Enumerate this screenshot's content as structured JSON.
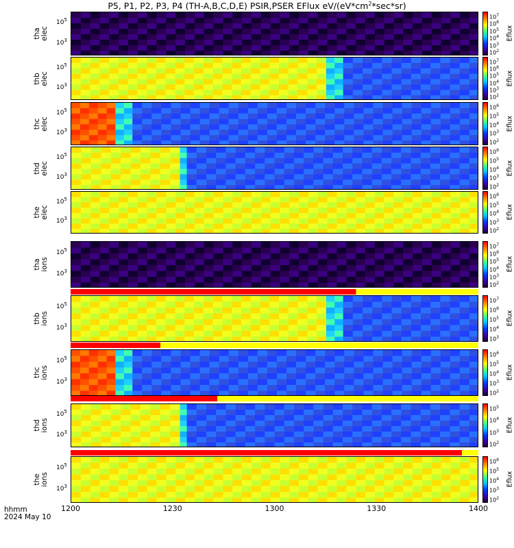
{
  "title": {
    "text": "P5, P1, P2, P3, P4 (TH-A,B,C,D,E) PSIR,PSER EFlux eV/(eV*cm",
    "sup": "2",
    "text2": "*sec*sr)"
  },
  "x_axis": {
    "label": "hhmm",
    "date": "2024 May 10",
    "ticks": [
      "1200",
      "1230",
      "1300",
      "1330",
      "1400"
    ]
  },
  "colorbar_label": "Eflux",
  "chart_data": {
    "type": "heatmap",
    "xrange": [
      "1200",
      "1400"
    ],
    "panels": [
      {
        "ylabel": [
          "tha",
          "elec"
        ],
        "yticks": [
          "10^5",
          "10^3"
        ],
        "cbar": [
          "10^7",
          "10^6",
          "10^5",
          "10^4",
          "10^3",
          "10^2"
        ],
        "segments": [
          {
            "to": "1400",
            "level": "very low"
          }
        ]
      },
      {
        "ylabel": [
          "thb",
          "elec"
        ],
        "yticks": [
          "10^5",
          "10^3"
        ],
        "cbar": [
          "10^7",
          "10^6",
          "10^5",
          "10^4",
          "10^3",
          "10^2"
        ],
        "segments": [
          {
            "to": "1315",
            "level": "high"
          },
          {
            "to": "1320",
            "level": "medium"
          },
          {
            "to": "1400",
            "level": "low"
          }
        ]
      },
      {
        "ylabel": [
          "thc",
          "elec"
        ],
        "yticks": [
          "10^5",
          "10^3"
        ],
        "cbar": [
          "10^6",
          "10^5",
          "10^4",
          "10^3",
          "10^2"
        ],
        "segments": [
          {
            "to": "1213",
            "level": "very high"
          },
          {
            "to": "1218",
            "level": "medium"
          },
          {
            "to": "1400",
            "level": "low"
          }
        ]
      },
      {
        "ylabel": [
          "thd",
          "elec"
        ],
        "yticks": [
          "10^5",
          "10^3"
        ],
        "cbar": [
          "10^6",
          "10^5",
          "10^4",
          "10^3",
          "10^2"
        ],
        "segments": [
          {
            "to": "1232",
            "level": "high"
          },
          {
            "to": "1234",
            "level": "medium"
          },
          {
            "to": "1400",
            "level": "low"
          }
        ]
      },
      {
        "ylabel": [
          "the",
          "elec"
        ],
        "yticks": [
          "10^5",
          "10^3"
        ],
        "cbar": [
          "10^6",
          "10^5",
          "10^4",
          "10^3",
          "10^2"
        ],
        "segments": [
          {
            "to": "1400",
            "level": "high"
          }
        ]
      },
      {
        "ylabel": [
          "tha",
          "ions"
        ],
        "yticks": [
          "10^5",
          "10^3"
        ],
        "cbar": [
          "10^7",
          "10^6",
          "10^5",
          "10^4",
          "10^3",
          "10^2"
        ],
        "segments": [
          {
            "to": "1400",
            "level": "very low"
          }
        ]
      },
      {
        "ylabel": [
          "thb",
          "ions"
        ],
        "yticks": [
          "10^5",
          "10^3"
        ],
        "cbar": [
          "10^7",
          "10^6",
          "10^5",
          "10^4",
          "10^3"
        ],
        "segments": [
          {
            "to": "1315",
            "level": "high"
          },
          {
            "to": "1320",
            "level": "medium"
          },
          {
            "to": "1400",
            "level": "low"
          }
        ]
      },
      {
        "ylabel": [
          "thc",
          "ions"
        ],
        "yticks": [
          "10^5",
          "10^3"
        ],
        "cbar": [
          "10^6",
          "10^5",
          "10^4",
          "10^3",
          "10^2"
        ],
        "segments": [
          {
            "to": "1213",
            "level": "very high"
          },
          {
            "to": "1218",
            "level": "medium"
          },
          {
            "to": "1400",
            "level": "low"
          }
        ]
      },
      {
        "ylabel": [
          "thd",
          "ions"
        ],
        "yticks": [
          "10^5",
          "10^3"
        ],
        "cbar": [
          "10^5",
          "10^4",
          "10^3",
          "10^2"
        ],
        "segments": [
          {
            "to": "1232",
            "level": "high"
          },
          {
            "to": "1234",
            "level": "medium"
          },
          {
            "to": "1400",
            "level": "low"
          }
        ]
      },
      {
        "ylabel": [
          "the",
          "ions"
        ],
        "yticks": [
          "10^5",
          "10^3"
        ],
        "cbar": [
          "10^6",
          "10^5",
          "10^4",
          "10^3",
          "10^2"
        ],
        "segments": [
          {
            "to": "1400",
            "level": "high"
          }
        ]
      }
    ]
  }
}
